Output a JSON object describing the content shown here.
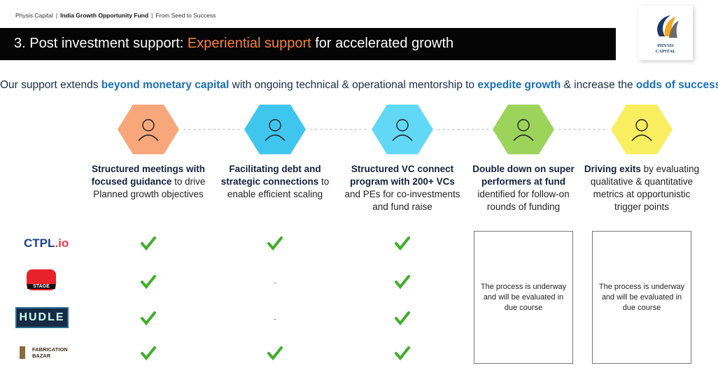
{
  "header": {
    "breadcrumb": [
      "Physis Capital",
      "India Growth Opportunity Fund",
      "From Seed to Success"
    ],
    "separator": "|",
    "logo": [
      "PHYSIS",
      "CAPITAL"
    ]
  },
  "title": [
    {
      "text": "3. Post investment support: "
    },
    {
      "text": "Experiential support",
      "highlight": true
    },
    {
      "text": " for accelerated growth"
    }
  ],
  "subtitle": [
    {
      "text": "Our support extends "
    },
    {
      "text": "beyond monetary capital",
      "highlight": true
    },
    {
      "text": " with ongoing technical & operational mentorship to "
    },
    {
      "text": "expedite growth",
      "highlight": true
    },
    {
      "text": " & increase the "
    },
    {
      "text": "odds of success",
      "highlight": true
    }
  ],
  "columns": [
    {
      "color": "#f7a77a",
      "text": [
        {
          "text": "Structured meetings with focused guidance",
          "bold": true
        },
        {
          "text": " to drive Planned growth objectives"
        }
      ]
    },
    {
      "color": "#3fc6ee",
      "text": [
        {
          "text": "Facilitating debt and strategic connections",
          "bold": true
        },
        {
          "text": " to enable efficient scaling"
        }
      ]
    },
    {
      "color": "#62d8f7",
      "text": [
        {
          "text": "Structured VC connect program with 200+ VCs",
          "bold": true
        },
        {
          "text": " and PEs for co-investments and fund raise"
        }
      ]
    },
    {
      "color": "#9bd35b",
      "text": [
        {
          "text": "Double down on super performers at fund",
          "bold": true
        },
        {
          "text": " identified for follow-on rounds of funding"
        }
      ]
    },
    {
      "color": "#f8ee5f",
      "text": [
        {
          "text": "Driving exits",
          "bold": true
        },
        {
          "text": " by evaluating qualitative & quantitative metrics at opportunistic trigger points"
        }
      ]
    }
  ],
  "rows": [
    {
      "company": [
        {
          "text": "CTPL"
        },
        {
          "text": ".io",
          "highlight": true
        }
      ],
      "cells": [
        true,
        true,
        true
      ]
    },
    {
      "company": [
        {
          "text": "STAGE"
        }
      ],
      "cells": [
        true,
        "-",
        true
      ]
    },
    {
      "company": [
        {
          "text": "HUDLE"
        }
      ],
      "cells": [
        true,
        "-",
        true
      ]
    },
    {
      "company": [
        {
          "text": "FABRICATION"
        },
        {
          "text": "BAZAR"
        }
      ],
      "cells": [
        true,
        true,
        true
      ]
    }
  ],
  "pending": [
    "The process is underway and will be evaluated in due course",
    "The process is underway and will be evaluated in due course"
  ]
}
